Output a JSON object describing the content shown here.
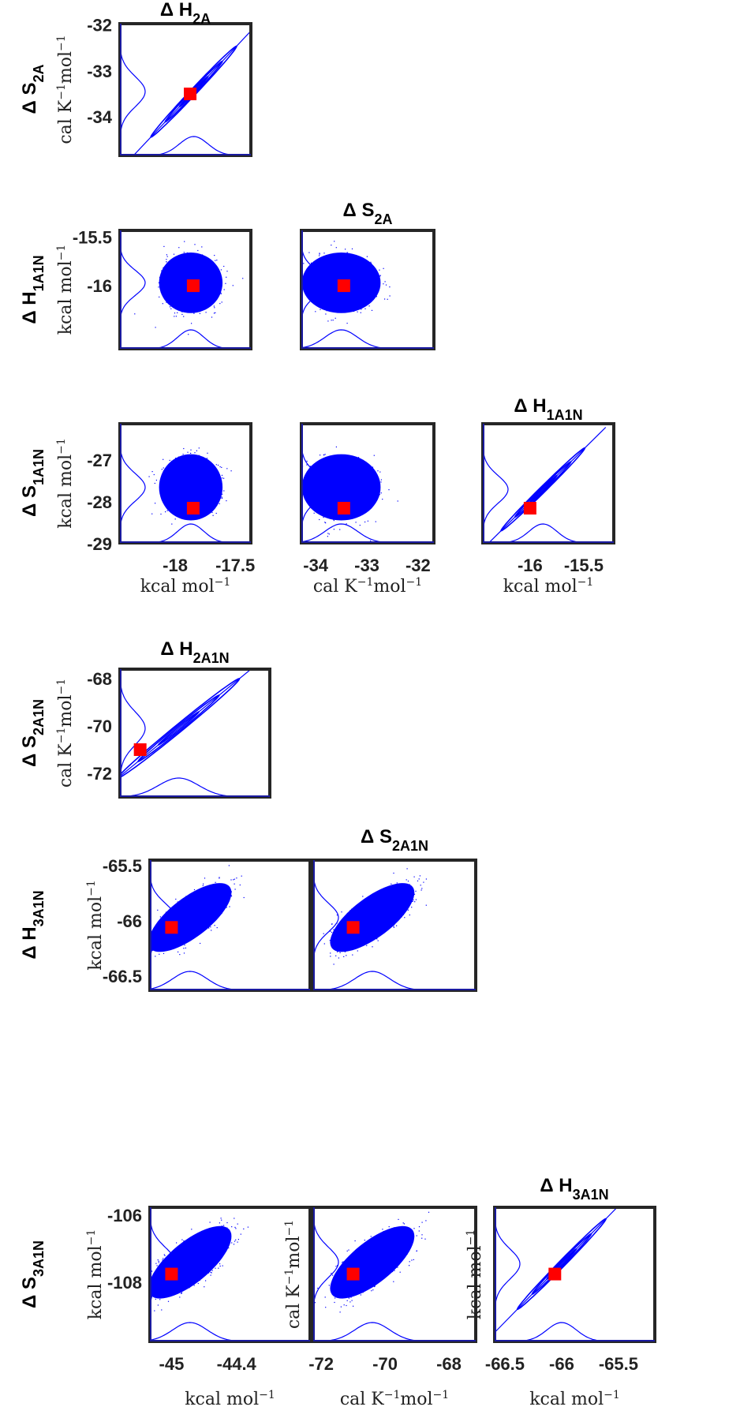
{
  "chart_data": {
    "type": "scatter",
    "title": "",
    "colors": {
      "samples": "#0000ff",
      "best_fit": "#ff0000",
      "axes": "#262626"
    },
    "column_titles": [
      {
        "delta": "Δ",
        "base": "H",
        "sub": "2A"
      },
      {
        "delta": "Δ",
        "base": "S",
        "sub": "2A"
      },
      {
        "delta": "Δ",
        "base": "H",
        "sub": "1A1N"
      },
      {
        "delta": "Δ",
        "base": "H",
        "sub": "2A1N"
      },
      {
        "delta": "Δ",
        "base": "S",
        "sub": "2A1N"
      },
      {
        "delta": "Δ",
        "base": "H",
        "sub": "3A1N"
      }
    ],
    "row_labels": [
      {
        "delta": "Δ",
        "base": "S",
        "sub": "2A"
      },
      {
        "delta": "Δ",
        "base": "H",
        "sub": "1A1N"
      },
      {
        "delta": "Δ",
        "base": "S",
        "sub": "1A1N"
      },
      {
        "delta": "Δ",
        "base": "S",
        "sub": "2A1N"
      },
      {
        "delta": "Δ",
        "base": "H",
        "sub": "3A1N"
      },
      {
        "delta": "Δ",
        "base": "S",
        "sub": "3A1N"
      }
    ],
    "units": {
      "kcal": {
        "base": "kcal mol",
        "sup": "−1"
      },
      "cal": {
        "base": "cal K",
        "sup1": "−1",
        "mid": "mol",
        "sup": "−1"
      }
    },
    "panels": [
      {
        "xvar": "ΔH2A",
        "yvar": "ΔS2A",
        "kind": "contour",
        "xlim": [
          -18.4,
          -17.3
        ],
        "ylim": [
          -34.84,
          -31.97
        ],
        "xticks": [],
        "yticks": [
          -32,
          -33,
          -34
        ],
        "best": [
          -17.81,
          -33.5
        ],
        "mean": [
          -17.78,
          -33.45
        ],
        "sd": [
          0.12,
          0.33
        ],
        "rho": 0.995,
        "yunit": "cal",
        "xunit": null
      },
      {
        "xvar": "ΔH2A",
        "yvar": "ΔH1A1N",
        "kind": "scatter",
        "xlim": [
          -18.46,
          -17.37
        ],
        "ylim": [
          -16.65,
          -15.43
        ],
        "xticks": [],
        "yticks": [
          -15.5,
          -16
        ],
        "best": [
          -17.85,
          -16.0
        ],
        "mean": [
          -17.87,
          -15.97
        ],
        "sd": [
          0.11,
          0.13
        ],
        "rho": 0.0,
        "yunit": "kcal",
        "xunit": null
      },
      {
        "xvar": "ΔS2A",
        "yvar": "ΔH1A1N",
        "kind": "scatter",
        "xlim": [
          -34.28,
          -31.69
        ],
        "ylim": [
          -16.65,
          -15.43
        ],
        "xticks": [],
        "yticks": [],
        "best": [
          -33.45,
          -16.0
        ],
        "mean": [
          -33.5,
          -15.97
        ],
        "sd": [
          0.32,
          0.13
        ],
        "rho": 0.0,
        "yunit": null,
        "xunit": null
      },
      {
        "xvar": "ΔH2A",
        "yvar": "ΔS1A1N",
        "kind": "scatter",
        "xlim": [
          -18.46,
          -17.37
        ],
        "ylim": [
          -28.98,
          -26.13
        ],
        "xticks": [
          -18,
          -17.5
        ],
        "yticks": [
          -27,
          -28,
          -29
        ],
        "best": [
          -17.85,
          -28.15
        ],
        "mean": [
          -17.87,
          -27.65
        ],
        "sd": [
          0.11,
          0.33
        ],
        "rho": 0.0,
        "yunit": "kcal",
        "xunit": "kcal"
      },
      {
        "xvar": "ΔS2A",
        "yvar": "ΔS1A1N",
        "kind": "scatter",
        "xlim": [
          -34.28,
          -31.69
        ],
        "ylim": [
          -28.98,
          -26.13
        ],
        "xticks": [
          -34,
          -33,
          -32
        ],
        "yticks": [],
        "best": [
          -33.45,
          -28.15
        ],
        "mean": [
          -33.5,
          -27.65
        ],
        "sd": [
          0.32,
          0.33
        ],
        "rho": 0.0,
        "yunit": null,
        "xunit": "cal"
      },
      {
        "xvar": "ΔH1A1N",
        "yvar": "ΔS1A1N",
        "kind": "contour",
        "xlim": [
          -16.44,
          -15.22
        ],
        "ylim": [
          -28.98,
          -26.13
        ],
        "xticks": [
          -16,
          -15.5
        ],
        "yticks": [],
        "best": [
          -16.0,
          -28.15
        ],
        "mean": [
          -15.88,
          -27.7
        ],
        "sd": [
          0.13,
          0.33
        ],
        "rho": 0.995,
        "yunit": null,
        "xunit": "kcal"
      },
      {
        "xvar": "ΔH2A1N",
        "yvar": "ΔS2A1N",
        "kind": "contour",
        "xlim": [
          -45.2,
          -43.72
        ],
        "ylim": [
          -73.0,
          -67.6
        ],
        "xticks": [],
        "yticks": [
          -68,
          -70,
          -72
        ],
        "best": [
          -45.0,
          -71.0
        ],
        "mean": [
          -44.62,
          -70.1
        ],
        "sd": [
          0.2,
          0.7
        ],
        "rho": 0.995,
        "yunit": "cal",
        "xunit": null
      },
      {
        "xvar": "ΔH2A1N",
        "yvar": "ΔH3A1N",
        "kind": "scatter",
        "xlim": [
          -45.2,
          -43.72
        ],
        "ylim": [
          -66.63,
          -65.45
        ],
        "xticks": [],
        "yticks": [
          -65.5,
          -66,
          -66.5
        ],
        "best": [
          -45.0,
          -66.06
        ],
        "mean": [
          -44.83,
          -65.97
        ],
        "sd": [
          0.16,
          0.13
        ],
        "rho": 0.72,
        "yunit": "kcal",
        "xunit": null
      },
      {
        "xvar": "ΔS2A1N",
        "yvar": "ΔH3A1N",
        "kind": "scatter",
        "xlim": [
          -72.25,
          -67.16
        ],
        "ylim": [
          -66.63,
          -65.45
        ],
        "xticks": [],
        "yticks": [],
        "best": [
          -71.0,
          -66.06
        ],
        "mean": [
          -70.4,
          -65.97
        ],
        "sd": [
          0.55,
          0.13
        ],
        "rho": 0.72,
        "yunit": null,
        "xunit": null
      },
      {
        "xvar": "ΔH2A1N",
        "yvar": "ΔS3A1N",
        "kind": "scatter",
        "xlim": [
          -45.2,
          -43.72
        ],
        "ylim": [
          -109.76,
          -105.76
        ],
        "xticks": [
          -45,
          -44.4
        ],
        "yticks": [
          -106,
          -108
        ],
        "best": [
          -45.0,
          -107.75
        ],
        "mean": [
          -44.83,
          -107.4
        ],
        "sd": [
          0.16,
          0.45
        ],
        "rho": 0.72,
        "yunit": "kcal",
        "xunit": "kcal"
      },
      {
        "xvar": "ΔS2A1N",
        "yvar": "ΔS3A1N",
        "kind": "scatter",
        "xlim": [
          -72.25,
          -67.16
        ],
        "ylim": [
          -109.76,
          -105.76
        ],
        "xticks": [
          -72,
          -70,
          -68
        ],
        "yticks": [],
        "best": [
          -71.0,
          -107.75
        ],
        "mean": [
          -70.4,
          -107.4
        ],
        "sd": [
          0.55,
          0.45
        ],
        "rho": 0.72,
        "yunit": "cal",
        "xunit": "cal"
      },
      {
        "xvar": "ΔH3A1N",
        "yvar": "ΔS3A1N",
        "kind": "contour",
        "xlim": [
          -66.59,
          -65.18
        ],
        "ylim": [
          -109.76,
          -105.76
        ],
        "xticks": [
          -66.5,
          -66,
          -65.5
        ],
        "yticks": [],
        "best": [
          -66.06,
          -107.75
        ],
        "mean": [
          -66.0,
          -107.45
        ],
        "sd": [
          0.13,
          0.45
        ],
        "rho": 0.995,
        "yunit": "kcal",
        "xunit": "kcal"
      }
    ]
  }
}
